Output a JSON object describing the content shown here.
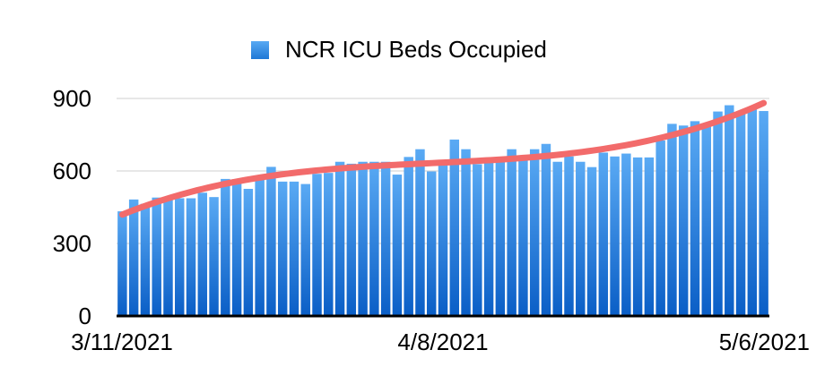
{
  "chart_data": {
    "type": "bar",
    "title": "",
    "legend": {
      "position": "top",
      "entries": [
        "NCR ICU Beds Occupied"
      ]
    },
    "series": [
      {
        "name": "NCR ICU Beds Occupied",
        "values": [
          433,
          482,
          464,
          490,
          480,
          487,
          487,
          510,
          492,
          567,
          566,
          526,
          564,
          617,
          556,
          556,
          546,
          588,
          592,
          638,
          630,
          638,
          638,
          638,
          585,
          658,
          690,
          598,
          628,
          730,
          690,
          628,
          640,
          648,
          690,
          660,
          690,
          712,
          638,
          660,
          638,
          616,
          676,
          660,
          672,
          656,
          656,
          726,
          795,
          788,
          806,
          798,
          846,
          872,
          838,
          866,
          848
        ]
      }
    ],
    "trendline": {
      "type": "polynomial",
      "color": "#f26b6b"
    },
    "x_range": [
      "3/11/2021",
      "5/6/2021"
    ],
    "x_tick_labels": [
      "3/11/2021",
      "4/8/2021",
      "5/6/2021"
    ],
    "y_tick_labels": [
      "0",
      "300",
      "600",
      "900"
    ],
    "ylim": [
      0,
      900
    ],
    "grid": {
      "horizontal": true,
      "vertical": false
    },
    "colors": {
      "bar_top": "#5aaaf4",
      "bar_bottom": "#0a5ec6",
      "trend": "#f26b6b",
      "grid": "#cfcfcf",
      "baseline": "#000000"
    }
  }
}
